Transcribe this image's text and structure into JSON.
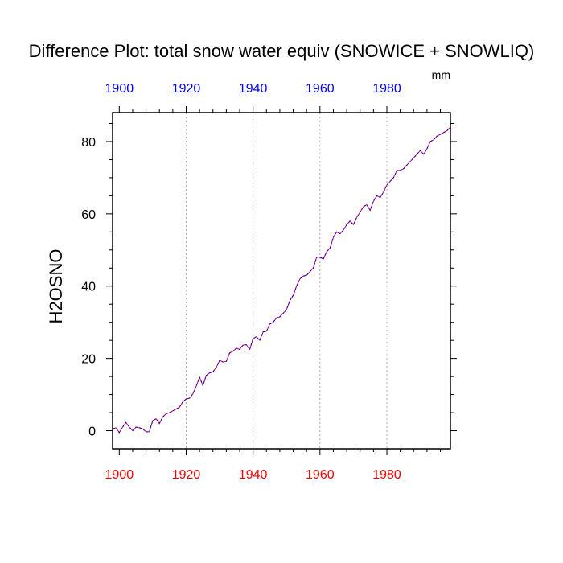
{
  "chart_data": {
    "type": "line",
    "title": "Difference Plot: total snow water equiv (SNOWICE + SNOWLIQ)",
    "units": "mm",
    "ylabel": "H2OSNO",
    "xlim": [
      1898,
      1999
    ],
    "ylim": [
      -5,
      88
    ],
    "x_ticks_bottom": [
      1900,
      1920,
      1940,
      1960,
      1980
    ],
    "x_ticks_top": [
      1900,
      1920,
      1940,
      1960,
      1980
    ],
    "y_ticks": [
      0,
      20,
      40,
      60,
      80
    ],
    "grid": "vertical dotted at x ticks",
    "colors": {
      "bottom_tick_labels": "#ff0000",
      "top_tick_labels": "#0000ff",
      "series_a": "#ff0000",
      "series_b": "#0000ff"
    },
    "series": [
      {
        "x": [
          1898,
          1899,
          1900,
          1901,
          1902,
          1903,
          1904,
          1905,
          1906,
          1907,
          1908,
          1909,
          1910,
          1911,
          1912,
          1913,
          1914,
          1915,
          1916,
          1917,
          1918,
          1919,
          1920,
          1921,
          1922,
          1923,
          1924,
          1925,
          1926,
          1927,
          1928,
          1929,
          1930,
          1931,
          1932,
          1933,
          1934,
          1935,
          1936,
          1937,
          1938,
          1939,
          1940,
          1941,
          1942,
          1943,
          1944,
          1945,
          1946,
          1947,
          1948,
          1949,
          1950,
          1951,
          1952,
          1953,
          1954,
          1955,
          1956,
          1957,
          1958,
          1959,
          1960,
          1961,
          1962,
          1963,
          1964,
          1965,
          1966,
          1967,
          1968,
          1969,
          1970,
          1971,
          1972,
          1973,
          1974,
          1975,
          1976,
          1977,
          1978,
          1979,
          1980,
          1981,
          1982,
          1983,
          1984,
          1985,
          1986,
          1987,
          1988,
          1989,
          1990,
          1991,
          1992,
          1993,
          1994,
          1995,
          1996,
          1997,
          1998,
          1999
        ],
        "values": [
          0.5,
          0.8,
          -0.5,
          1,
          2.3,
          1,
          0,
          1,
          0.8,
          0.5,
          -0.3,
          -0.3,
          2.8,
          3.3,
          2,
          3.8,
          4.7,
          5,
          5.5,
          6,
          6.5,
          8,
          8.8,
          9,
          10.2,
          12.3,
          14.8,
          12.5,
          15.3,
          16,
          16.3,
          17.5,
          19.5,
          19,
          19.2,
          21.5,
          22,
          22.8,
          22.5,
          23.7,
          23.8,
          22.5,
          25.5,
          26,
          25,
          27.3,
          27.5,
          29.5,
          30,
          31.2,
          31.5,
          32.5,
          33.5,
          36,
          37.5,
          40,
          42,
          42.8,
          43,
          44,
          45,
          48,
          48,
          47.5,
          49.5,
          50.5,
          53.5,
          55,
          54.5,
          55.5,
          57,
          58,
          57,
          59,
          60.5,
          62,
          62.5,
          61,
          63.5,
          65,
          64.5,
          66,
          68,
          69,
          70,
          72,
          72,
          72.5,
          73.5,
          74.5,
          75.5,
          76.5,
          77.5,
          76.5,
          78,
          80,
          80.5,
          81.5,
          82,
          82.5,
          83,
          84
        ]
      },
      {
        "x": [
          1898,
          1899,
          1900,
          1901,
          1902,
          1903,
          1904,
          1905,
          1906,
          1907,
          1908,
          1909,
          1910,
          1911,
          1912,
          1913,
          1914,
          1915,
          1916,
          1917,
          1918,
          1919,
          1920,
          1921,
          1922,
          1923,
          1924,
          1925,
          1926,
          1927,
          1928,
          1929,
          1930,
          1931,
          1932,
          1933,
          1934,
          1935,
          1936,
          1937,
          1938,
          1939,
          1940,
          1941,
          1942,
          1943,
          1944,
          1945,
          1946,
          1947,
          1948,
          1949,
          1950,
          1951,
          1952,
          1953,
          1954,
          1955,
          1956,
          1957,
          1958,
          1959,
          1960,
          1961,
          1962,
          1963,
          1964,
          1965,
          1966,
          1967,
          1968,
          1969,
          1970,
          1971,
          1972,
          1973,
          1974,
          1975,
          1976,
          1977,
          1978,
          1979,
          1980,
          1981,
          1982,
          1983,
          1984,
          1985,
          1986,
          1987,
          1988,
          1989,
          1990,
          1991,
          1992,
          1993,
          1994,
          1995,
          1996,
          1997,
          1998,
          1999
        ],
        "values": [
          0.5,
          0.8,
          -0.5,
          1,
          2.3,
          1,
          0,
          1,
          0.8,
          0.5,
          -0.3,
          -0.3,
          2.8,
          3.3,
          2,
          3.8,
          4.7,
          5,
          5.5,
          6,
          6.5,
          8,
          8.8,
          9,
          10.2,
          12.3,
          14.8,
          12.5,
          15.3,
          16,
          16.3,
          17.5,
          19.5,
          19,
          19.2,
          21.5,
          22,
          22.8,
          22.5,
          23.7,
          23.8,
          22.5,
          25.5,
          26,
          25,
          27.3,
          27.5,
          29.5,
          30,
          31.2,
          31.5,
          32.5,
          33.5,
          36,
          37.5,
          40,
          42,
          42.8,
          43,
          44,
          45,
          48,
          48,
          47.5,
          49.5,
          50.5,
          53.5,
          55,
          54.5,
          55.5,
          57,
          58,
          57,
          59,
          60.5,
          62,
          62.5,
          61,
          63.5,
          65,
          64.5,
          66,
          68,
          69,
          70,
          72,
          72,
          72.5,
          73.5,
          74.5,
          75.5,
          76.5,
          77.5,
          76.5,
          78,
          80,
          80.5,
          81.5,
          82,
          82.5,
          83,
          84
        ]
      }
    ]
  }
}
